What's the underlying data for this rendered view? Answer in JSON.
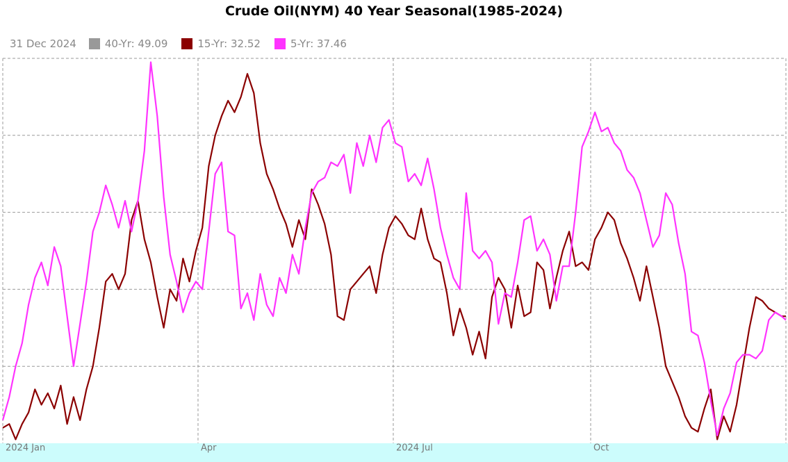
{
  "title": "Crude Oil(NYM) 40 Year Seasonal(1985-2024)",
  "legend": {
    "date": "31 Dec 2024",
    "items": [
      {
        "label": "40-Yr: 49.09",
        "color": "#999999"
      },
      {
        "label": "15-Yr: 32.52",
        "color": "#8b0000"
      },
      {
        "label": "5-Yr: 37.46",
        "color": "#ff33ff"
      }
    ]
  },
  "chart_data": {
    "type": "line",
    "title": "Crude Oil(NYM) 40 Year Seasonal(1985-2024)",
    "xlabel": "",
    "ylabel": "",
    "x_range_days": [
      0,
      365
    ],
    "ylim": [
      0,
      100
    ],
    "x_ticks": [
      {
        "label": "2024 Jan",
        "day": 0
      },
      {
        "label": "Apr",
        "day": 91
      },
      {
        "label": "2024 Jul",
        "day": 182
      },
      {
        "label": "Oct",
        "day": 274
      }
    ],
    "y_gridlines": [
      20,
      40,
      60,
      80
    ],
    "grid": true,
    "series": [
      {
        "name": "15-Yr",
        "color": "#8b0000",
        "days": [
          0,
          3,
          6,
          9,
          12,
          15,
          18,
          21,
          24,
          27,
          30,
          33,
          36,
          39,
          42,
          45,
          48,
          51,
          54,
          57,
          60,
          63,
          66,
          69,
          72,
          75,
          78,
          81,
          84,
          87,
          90,
          93,
          96,
          99,
          102,
          105,
          108,
          111,
          114,
          117,
          120,
          123,
          126,
          129,
          132,
          135,
          138,
          141,
          144,
          147,
          150,
          153,
          156,
          159,
          162,
          165,
          168,
          171,
          174,
          177,
          180,
          183,
          186,
          189,
          192,
          195,
          198,
          201,
          204,
          207,
          210,
          213,
          216,
          219,
          222,
          225,
          228,
          231,
          234,
          237,
          240,
          243,
          246,
          249,
          252,
          255,
          258,
          261,
          264,
          267,
          270,
          273,
          276,
          279,
          282,
          285,
          288,
          291,
          294,
          297,
          300,
          303,
          306,
          309,
          312,
          315,
          318,
          321,
          324,
          327,
          330,
          333,
          336,
          339,
          342,
          345,
          348,
          351,
          354,
          357,
          360,
          363,
          365
        ],
        "values": [
          4,
          5,
          1,
          5,
          8,
          14,
          10,
          13,
          9,
          15,
          5,
          12,
          6,
          14,
          20,
          30,
          42,
          44,
          40,
          44,
          58,
          63,
          53,
          47,
          38,
          30,
          40,
          37,
          48,
          42,
          50,
          56,
          72,
          80,
          85,
          89,
          86,
          90,
          96,
          91,
          78,
          70,
          66,
          61,
          57,
          51,
          58,
          53,
          66,
          62,
          57,
          49,
          33,
          32,
          40,
          42,
          44,
          46,
          39,
          49,
          56,
          59,
          57,
          54,
          53,
          61,
          53,
          48,
          47,
          39,
          28,
          35,
          30,
          23,
          29,
          22,
          38,
          43,
          40,
          30,
          41,
          33,
          34,
          47,
          45,
          35,
          43,
          50,
          55,
          46,
          47,
          45,
          53,
          56,
          60,
          58,
          52,
          48,
          43,
          37,
          46,
          38,
          30,
          20,
          16,
          12,
          7,
          4,
          3,
          9,
          14,
          1,
          7,
          3,
          10,
          20,
          30,
          38,
          37,
          35,
          34,
          33,
          33
        ]
      },
      {
        "name": "5-Yr",
        "color": "#ff33ff",
        "days": [
          0,
          3,
          6,
          9,
          12,
          15,
          18,
          21,
          24,
          27,
          30,
          33,
          36,
          39,
          42,
          45,
          48,
          51,
          54,
          57,
          60,
          63,
          66,
          69,
          72,
          75,
          78,
          81,
          84,
          87,
          90,
          93,
          96,
          99,
          102,
          105,
          108,
          111,
          114,
          117,
          120,
          123,
          126,
          129,
          132,
          135,
          138,
          141,
          144,
          147,
          150,
          153,
          156,
          159,
          162,
          165,
          168,
          171,
          174,
          177,
          180,
          183,
          186,
          189,
          192,
          195,
          198,
          201,
          204,
          207,
          210,
          213,
          216,
          219,
          222,
          225,
          228,
          231,
          234,
          237,
          240,
          243,
          246,
          249,
          252,
          255,
          258,
          261,
          264,
          267,
          270,
          273,
          276,
          279,
          282,
          285,
          288,
          291,
          294,
          297,
          300,
          303,
          306,
          309,
          312,
          315,
          318,
          321,
          324,
          327,
          330,
          333,
          336,
          339,
          342,
          345,
          348,
          351,
          354,
          357,
          360,
          363,
          365
        ],
        "values": [
          6,
          12,
          20,
          26,
          36,
          43,
          47,
          41,
          51,
          46,
          33,
          20,
          31,
          42,
          55,
          60,
          67,
          62,
          56,
          63,
          55,
          63,
          76,
          99,
          85,
          64,
          49,
          42,
          34,
          39,
          42,
          40,
          55,
          70,
          73,
          55,
          54,
          35,
          39,
          32,
          44,
          36,
          33,
          43,
          39,
          49,
          44,
          56,
          65,
          68,
          69,
          73,
          72,
          75,
          65,
          78,
          72,
          80,
          73,
          82,
          84,
          78,
          77,
          68,
          70,
          67,
          74,
          66,
          56,
          49,
          43,
          40,
          65,
          50,
          48,
          50,
          47,
          31,
          39,
          38,
          47,
          58,
          59,
          50,
          53,
          49,
          37,
          46,
          46,
          60,
          77,
          81,
          86,
          81,
          82,
          78,
          76,
          71,
          69,
          65,
          58,
          51,
          54,
          65,
          62,
          52,
          44,
          29,
          28,
          21,
          11,
          2,
          9,
          13,
          21,
          23,
          23,
          22,
          24,
          32,
          34,
          33,
          32
        ]
      }
    ]
  }
}
